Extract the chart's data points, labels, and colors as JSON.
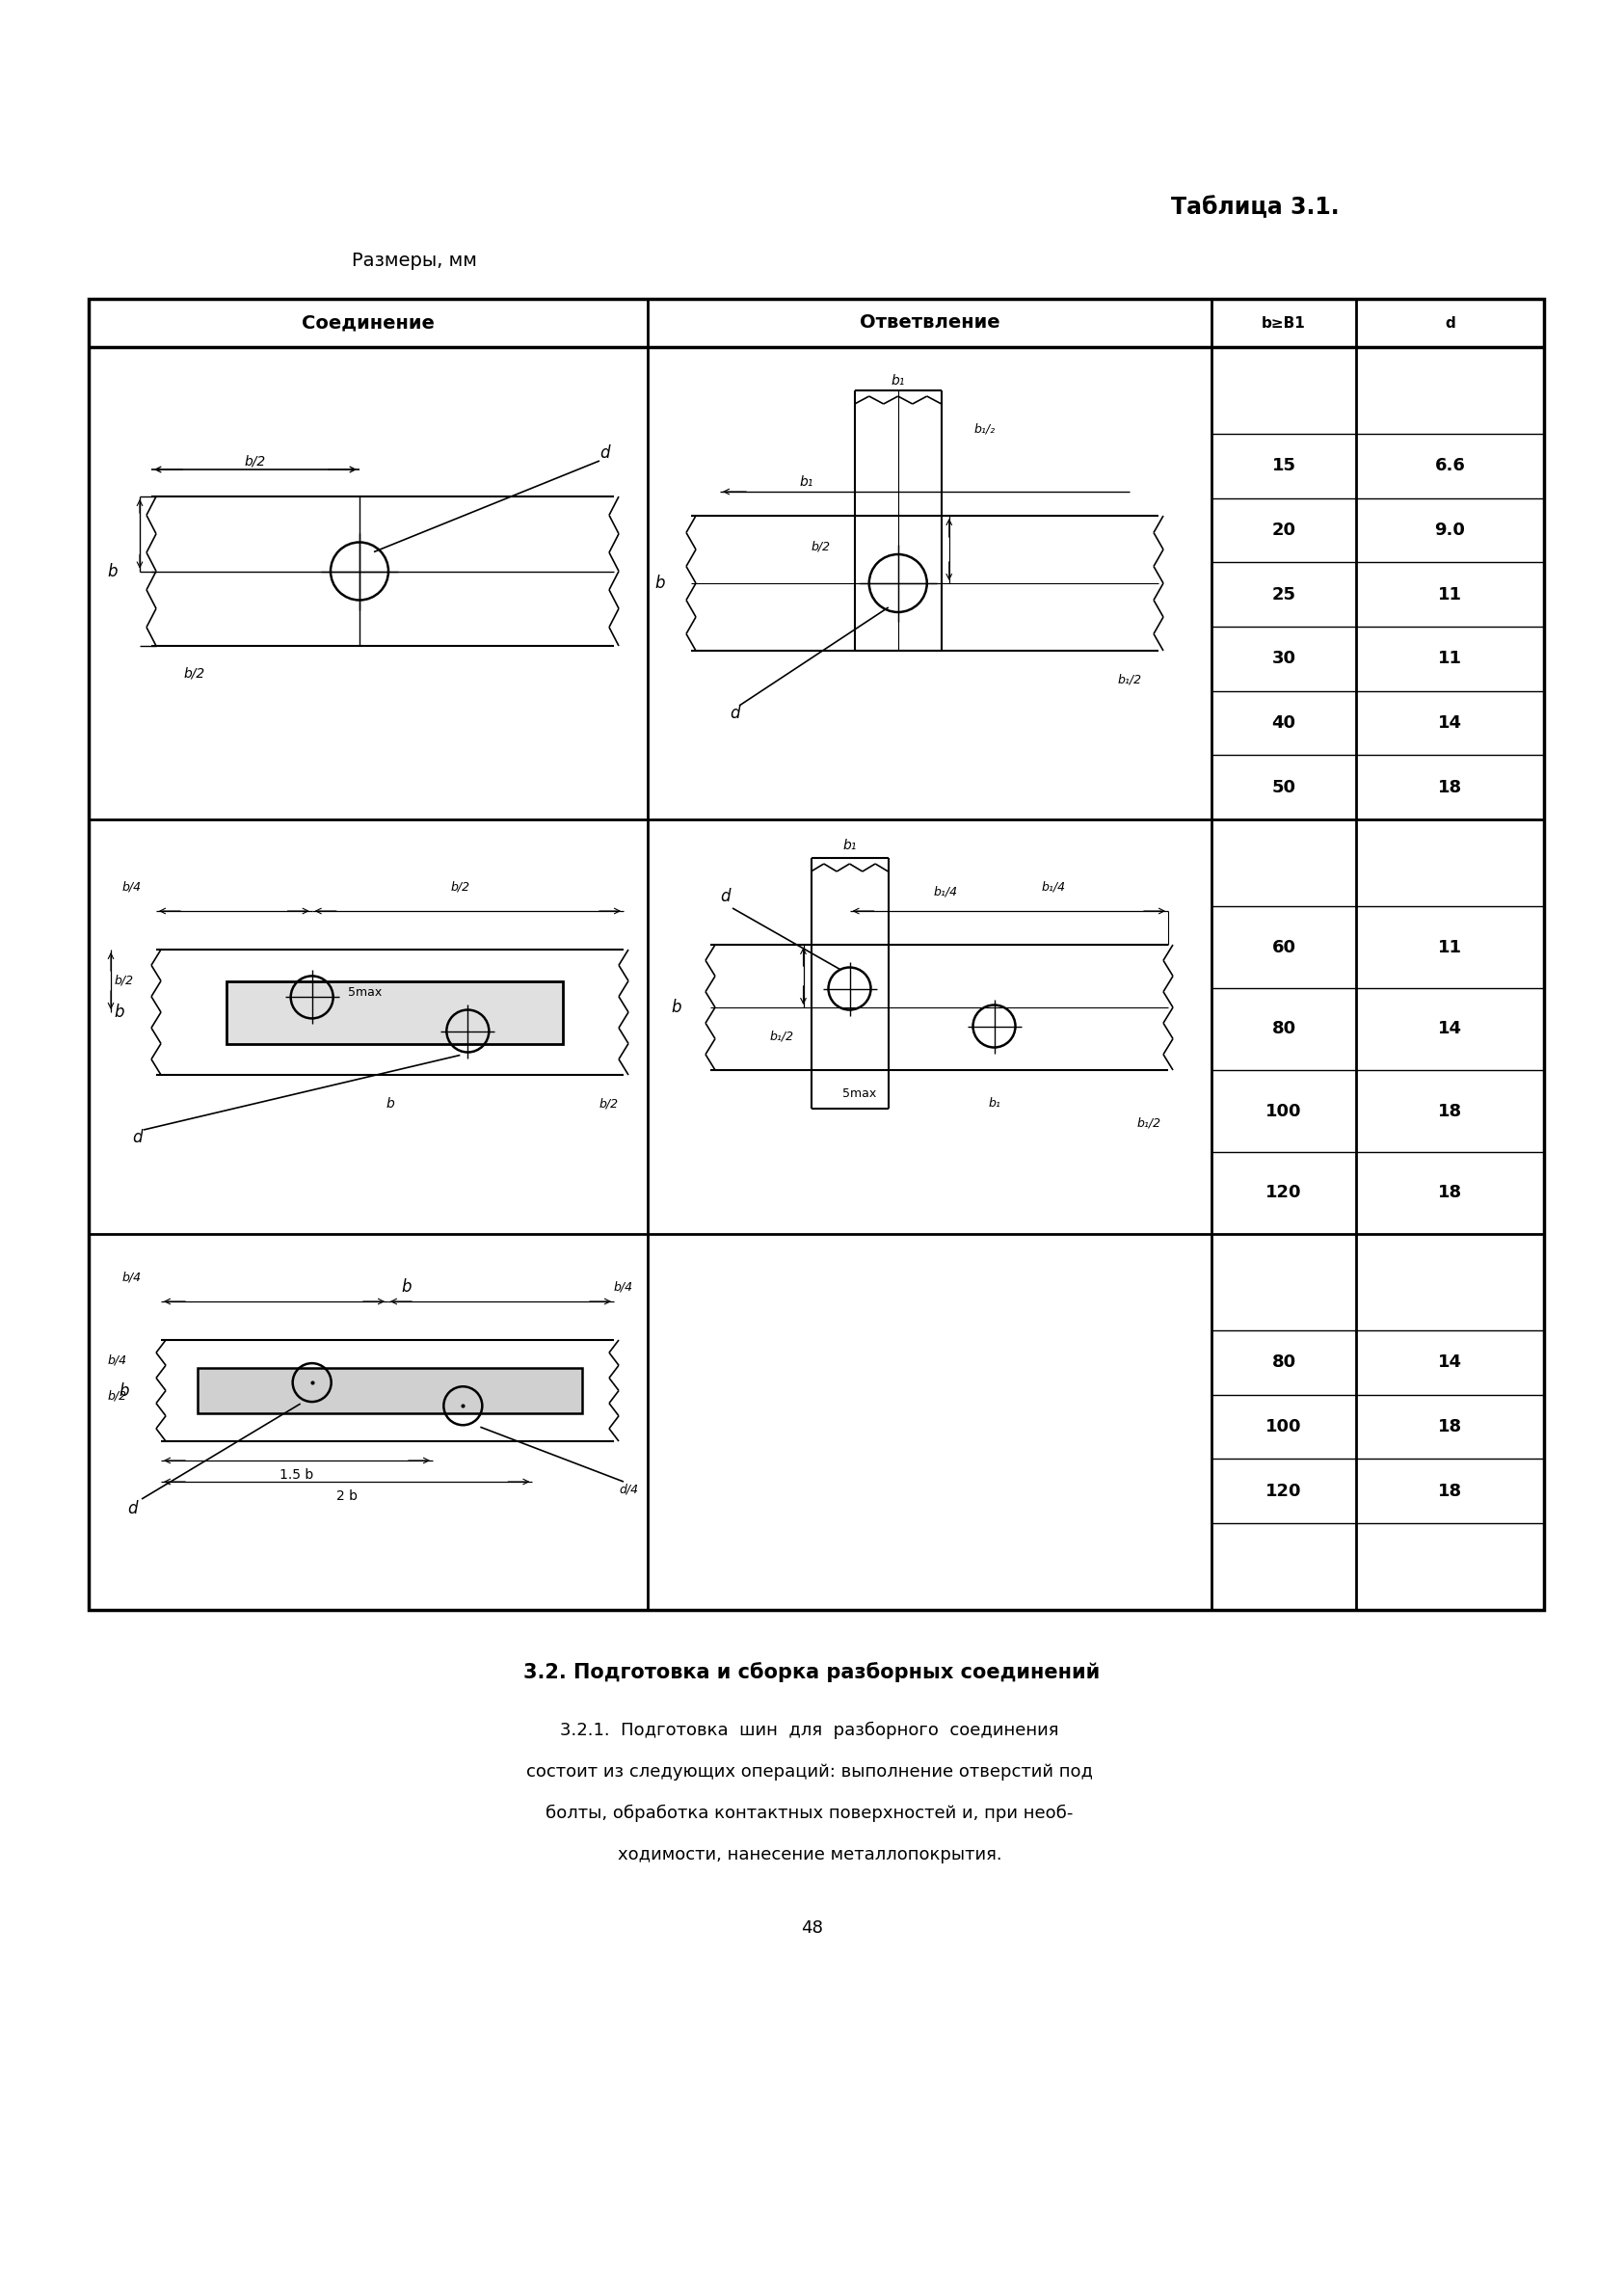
{
  "title": "Таблица 3.1.",
  "subtitle": "Размеры, мм",
  "col_headers": [
    "Соединение",
    "Ответвление",
    "b≥B1",
    "d"
  ],
  "table_data_row1": [
    [
      "15",
      "6.6"
    ],
    [
      "20",
      "9.0"
    ],
    [
      "25",
      "11"
    ],
    [
      "30",
      "11"
    ],
    [
      "40",
      "14"
    ],
    [
      "50",
      "18"
    ]
  ],
  "table_data_row2": [
    [
      "60",
      "11"
    ],
    [
      "80",
      "14"
    ],
    [
      "100",
      "18"
    ],
    [
      "120",
      "18"
    ]
  ],
  "table_data_row3": [
    [
      "80",
      "14"
    ],
    [
      "100",
      "18"
    ],
    [
      "120",
      "18"
    ]
  ],
  "section_title": "3.2. Подготовка и сборка разборных соединений",
  "para1": "3.2.1.  Подготовка  шин  для  разборного  соединения",
  "para2": "состоит из следующих операций: выполнение отверстий под",
  "para3": "болты, обработка контактных поверхностей и, при необ-",
  "para4": "ходимости, нанесение металлопокрытия.",
  "page_number": "48",
  "bg_color": "#ffffff",
  "text_color": "#000000"
}
